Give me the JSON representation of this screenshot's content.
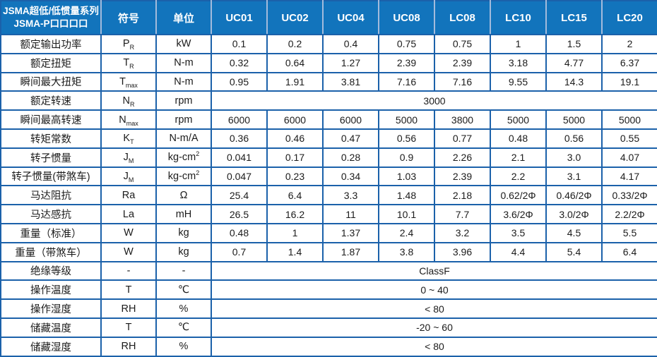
{
  "table": {
    "title_line1": "JSMA超低/低惯量系列",
    "title_line2": "JSMA-P口口口口",
    "col_symbol": "符号",
    "col_unit": "单位",
    "models": [
      "UC01",
      "UC02",
      "UC04",
      "UC08",
      "LC08",
      "LC10",
      "LC15",
      "LC20"
    ],
    "colors": {
      "header_bg": "#1274bc",
      "header_text": "#ffffff",
      "grid_border": "#1b61aa",
      "header_separator": "#a3bbdc",
      "body_text": "#1b1b1b"
    },
    "rows": [
      {
        "label": "额定输出功率",
        "symbol": "P",
        "sub": "R",
        "unit": "kW",
        "values": [
          "0.1",
          "0.2",
          "0.4",
          "0.75",
          "0.75",
          "1",
          "1.5",
          "2"
        ]
      },
      {
        "label": "额定扭矩",
        "symbol": "T",
        "sub": "R",
        "unit": "N-m",
        "values": [
          "0.32",
          "0.64",
          "1.27",
          "2.39",
          "2.39",
          "3.18",
          "4.77",
          "6.37"
        ]
      },
      {
        "label": "瞬间最大扭矩",
        "symbol": "T",
        "sub": "max",
        "unit": "N-m",
        "values": [
          "0.95",
          "1.91",
          "3.81",
          "7.16",
          "7.16",
          "9.55",
          "14.3",
          "19.1"
        ]
      },
      {
        "label": "额定转速",
        "symbol": "N",
        "sub": "R",
        "unit": "rpm",
        "merged": "3000"
      },
      {
        "label": "瞬间最高转速",
        "symbol": "N",
        "sub": "max",
        "unit": "rpm",
        "values": [
          "6000",
          "6000",
          "6000",
          "5000",
          "3800",
          "5000",
          "5000",
          "5000"
        ]
      },
      {
        "label": "转矩常数",
        "symbol": "K",
        "sub": "T",
        "unit": "N-m/A",
        "values": [
          "0.36",
          "0.46",
          "0.47",
          "0.56",
          "0.77",
          "0.48",
          "0.56",
          "0.55"
        ]
      },
      {
        "label": "转子惯量",
        "symbol": "J",
        "sub": "M",
        "unit": "kg-cm",
        "unit_sup": "2",
        "values": [
          "0.041",
          "0.17",
          "0.28",
          "0.9",
          "2.26",
          "2.1",
          "3.0",
          "4.07"
        ]
      },
      {
        "label": "转子惯量(带煞车)",
        "symbol": "J",
        "sub": "M",
        "unit": "kg-cm",
        "unit_sup": "2",
        "values": [
          "0.047",
          "0.23",
          "0.34",
          "1.03",
          "2.39",
          "2.2",
          "3.1",
          "4.17"
        ]
      },
      {
        "label": "马达阻抗",
        "symbol": "Ra",
        "unit": "Ω",
        "values": [
          "25.4",
          "6.4",
          "3.3",
          "1.48",
          "2.18",
          "0.62/2Φ",
          "0.46/2Φ",
          "0.33/2Φ"
        ]
      },
      {
        "label": "马达感抗",
        "symbol": "La",
        "unit": "mH",
        "values": [
          "26.5",
          "16.2",
          "11",
          "10.1",
          "7.7",
          "3.6/2Φ",
          "3.0/2Φ",
          "2.2/2Φ"
        ]
      },
      {
        "label": "重量（标准）",
        "symbol": "W",
        "unit": "kg",
        "values": [
          "0.48",
          "1",
          "1.37",
          "2.4",
          "3.2",
          "3.5",
          "4.5",
          "5.5"
        ]
      },
      {
        "label": "重量（带煞车）",
        "symbol": "W",
        "unit": "kg",
        "values": [
          "0.7",
          "1.4",
          "1.87",
          "3.8",
          "3.96",
          "4.4",
          "5.4",
          "6.4"
        ]
      },
      {
        "label": "绝缘等级",
        "symbol": "-",
        "unit": "-",
        "merged": "ClassF"
      },
      {
        "label": "操作温度",
        "symbol": "T",
        "unit": "℃",
        "merged": "0 ~ 40"
      },
      {
        "label": "操作湿度",
        "symbol": "RH",
        "unit": "%",
        "merged": "< 80"
      },
      {
        "label": "储藏温度",
        "symbol": "T",
        "unit": "℃",
        "merged": "-20 ~ 60"
      },
      {
        "label": "储藏湿度",
        "symbol": "RH",
        "unit": "%",
        "merged": "< 80"
      }
    ]
  }
}
